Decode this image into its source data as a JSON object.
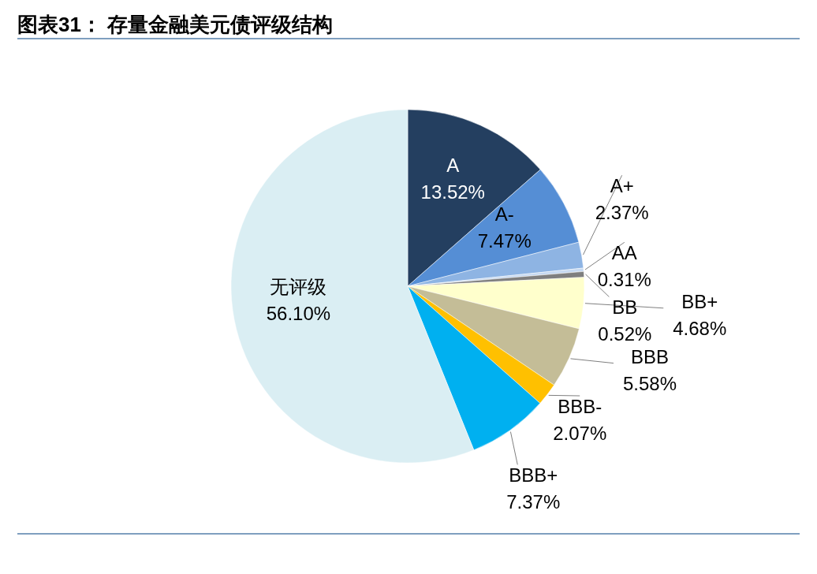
{
  "chart_data": {
    "type": "pie",
    "title": "图表31：  存量金融美元债评级结构",
    "categories": [
      "A",
      "A-",
      "A+",
      "AA",
      "BB",
      "BB+",
      "BBB",
      "BBB-",
      "BBB+",
      "无评级"
    ],
    "values": [
      13.52,
      7.47,
      2.37,
      0.31,
      0.52,
      4.68,
      5.58,
      2.07,
      7.37,
      56.1
    ],
    "value_labels": [
      "13.52%",
      "7.47%",
      "2.37%",
      "0.31%",
      "0.52%",
      "4.68%",
      "5.58%",
      "2.07%",
      "7.37%",
      "56.10%"
    ],
    "colors": [
      "#243f60",
      "#558ed5",
      "#8eb4e3",
      "#c6d9f1",
      "#7f7f7f",
      "#ffffcc",
      "#c4bd97",
      "#ffc000",
      "#00b0f0",
      "#daeef3"
    ],
    "legend": false
  }
}
